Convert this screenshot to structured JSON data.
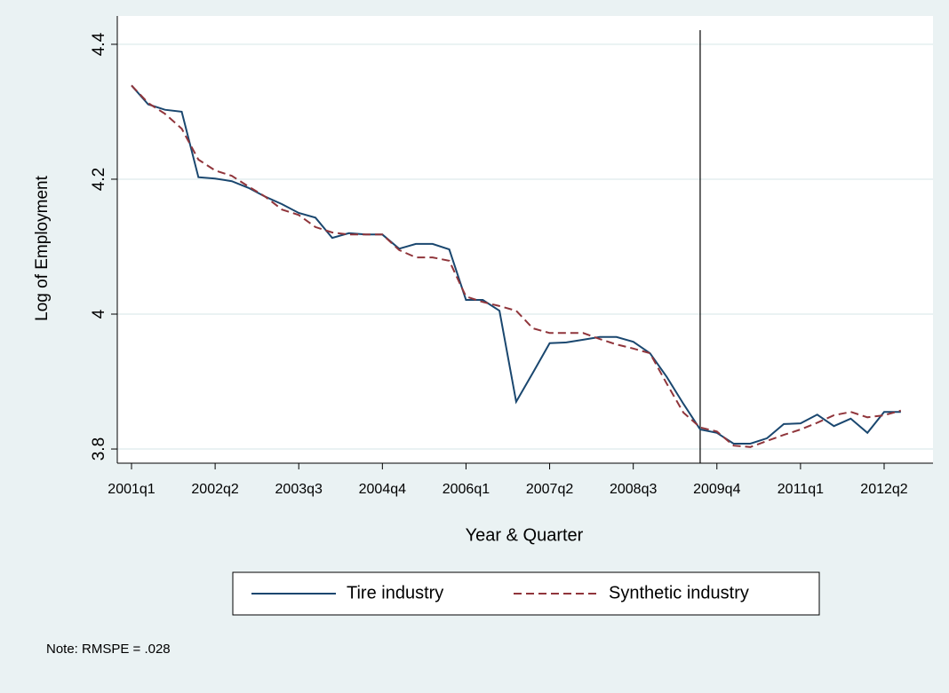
{
  "chart_data": {
    "type": "line",
    "x_label": "Year & Quarter",
    "y_label": "Log of Employment",
    "note": "Note: RMSPE = .028",
    "categories": [
      "2001q1",
      null,
      null,
      null,
      null,
      "2002q2",
      null,
      null,
      null,
      null,
      "2003q3",
      null,
      null,
      null,
      null,
      "2004q4",
      null,
      null,
      null,
      null,
      "2006q1",
      null,
      null,
      null,
      null,
      "2007q2",
      null,
      null,
      null,
      null,
      "2008q3",
      null,
      null,
      null,
      null,
      "2009q4",
      null,
      null,
      null,
      null,
      "2011q1",
      null,
      null,
      null,
      null,
      "2012q2",
      null
    ],
    "xline": 34,
    "series": [
      {
        "name": "Tire industry",
        "color": "#1a476f",
        "dash": false,
        "values": [
          4.339,
          4.311,
          4.303,
          4.3,
          4.203,
          4.201,
          4.197,
          4.187,
          4.174,
          4.163,
          4.15,
          4.143,
          4.113,
          4.12,
          4.118,
          4.118,
          4.097,
          4.104,
          4.104,
          4.096,
          4.021,
          4.021,
          4.005,
          3.87,
          3.913,
          3.957,
          3.958,
          3.962,
          3.966,
          3.966,
          3.959,
          3.942,
          3.907,
          3.867,
          3.829,
          3.824,
          3.808,
          3.808,
          3.816,
          3.837,
          3.838,
          3.851,
          3.834,
          3.845,
          3.824,
          3.855,
          3.855
        ]
      },
      {
        "name": "Synthetic industry",
        "color": "#90353b",
        "dash": true,
        "values": [
          4.339,
          4.313,
          4.297,
          4.275,
          4.229,
          4.213,
          4.205,
          4.189,
          4.174,
          4.155,
          4.147,
          4.129,
          4.121,
          4.118,
          4.118,
          4.118,
          4.095,
          4.084,
          4.084,
          4.079,
          4.026,
          4.018,
          4.012,
          4.005,
          3.979,
          3.972,
          3.972,
          3.972,
          3.963,
          3.955,
          3.949,
          3.942,
          3.897,
          3.854,
          3.832,
          3.826,
          3.805,
          3.803,
          3.812,
          3.821,
          3.829,
          3.839,
          3.85,
          3.855,
          3.847,
          3.85,
          3.857
        ]
      }
    ],
    "ylim": [
      3.779,
      4.442
    ],
    "yticks": [
      3.8,
      4,
      4.2,
      4.4
    ],
    "grid": true
  }
}
